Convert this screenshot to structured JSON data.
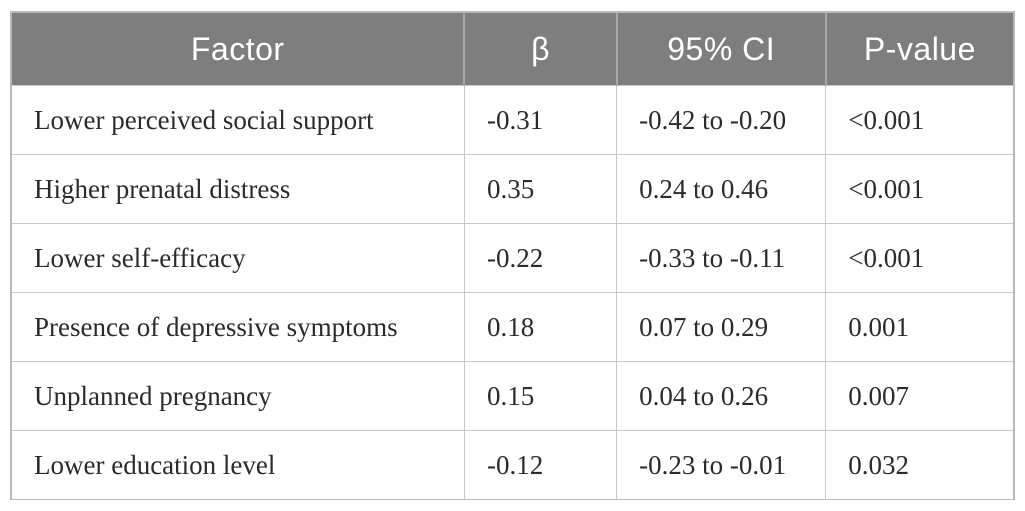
{
  "table": {
    "columns": {
      "factor": "Factor",
      "beta": "β",
      "ci": "95% CI",
      "p": "P-value"
    },
    "rows": [
      {
        "factor": "Lower perceived social support",
        "beta": "-0.31",
        "ci": "-0.42 to -0.20",
        "p": "<0.001"
      },
      {
        "factor": "Higher prenatal distress",
        "beta": "0.35",
        "ci": "0.24 to 0.46",
        "p": "<0.001"
      },
      {
        "factor": "Lower self-efficacy",
        "beta": "-0.22",
        "ci": "-0.33 to -0.11",
        "p": "<0.001"
      },
      {
        "factor": "Presence of depressive symptoms",
        "beta": "0.18",
        "ci": "0.07 to 0.29",
        "p": "0.001"
      },
      {
        "factor": "Unplanned pregnancy",
        "beta": "0.15",
        "ci": "0.04 to 0.26",
        "p": "0.007"
      },
      {
        "factor": "Lower education level",
        "beta": "-0.12",
        "ci": "-0.23 to -0.01",
        "p": "0.032"
      }
    ]
  },
  "colors": {
    "header_bg": "#7e7e7e",
    "header_text": "#ffffff",
    "body_text": "#2b2b2b",
    "grid_line": "#c9c9c9",
    "outer_border": "#b9b9b9"
  }
}
